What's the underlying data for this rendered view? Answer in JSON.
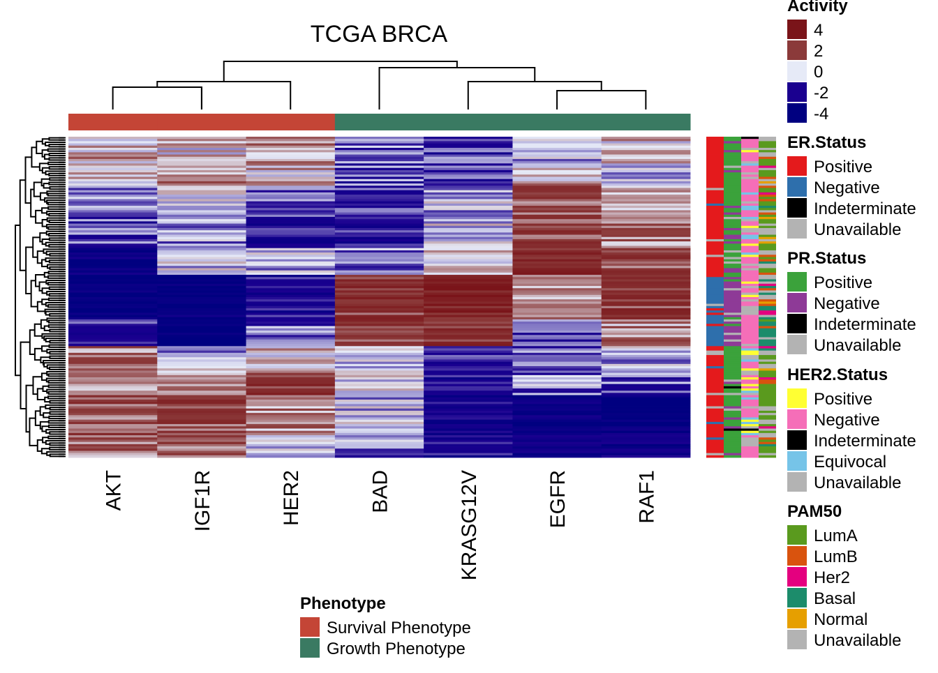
{
  "chart_data": {
    "type": "heatmap",
    "title": "TCGA BRCA",
    "columns": [
      "AKT",
      "IGF1R",
      "HER2",
      "BAD",
      "KRASG12V",
      "EGFR",
      "RAF1"
    ],
    "column_phenotype": [
      "Survival Phenotype",
      "Survival Phenotype",
      "Survival Phenotype",
      "Growth Phenotype",
      "Growth Phenotype",
      "Growth Phenotype",
      "Growth Phenotype"
    ],
    "row_clusters": [
      {
        "rows": 12,
        "values": [
          0.6,
          0.3,
          0.9,
          -1.2,
          -1.6,
          -0.3,
          0.4
        ]
      },
      {
        "rows": 10,
        "values": [
          0.4,
          0.8,
          0.5,
          -1.4,
          -1.8,
          0.7,
          -0.6
        ]
      },
      {
        "rows": 14,
        "values": [
          -0.5,
          -0.3,
          -1.2,
          -1.5,
          -0.4,
          1.8,
          0.6
        ]
      },
      {
        "rows": 14,
        "values": [
          -1.4,
          -0.8,
          -2.2,
          -2.0,
          -0.2,
          2.0,
          1.2
        ]
      },
      {
        "rows": 12,
        "values": [
          -3.5,
          -0.2,
          -0.6,
          -1.0,
          0.6,
          2.6,
          2.0
        ]
      },
      {
        "rows": 20,
        "values": [
          -3.6,
          -3.8,
          -2.4,
          2.4,
          3.2,
          1.0,
          2.4
        ]
      },
      {
        "rows": 12,
        "values": [
          -1.6,
          -4.0,
          -1.0,
          2.2,
          2.8,
          -1.2,
          1.0
        ]
      },
      {
        "rows": 12,
        "values": [
          1.2,
          -0.4,
          0.6,
          -0.6,
          -2.2,
          -1.4,
          -0.6
        ]
      },
      {
        "rows": 10,
        "values": [
          1.4,
          1.2,
          2.6,
          -0.3,
          -2.4,
          -1.0,
          -1.2
        ]
      },
      {
        "rows": 18,
        "values": [
          1.8,
          2.0,
          1.0,
          -0.5,
          -2.6,
          -3.4,
          -3.6
        ]
      },
      {
        "rows": 10,
        "values": [
          1.4,
          1.6,
          -0.2,
          -0.8,
          -2.4,
          -2.6,
          -3.0
        ]
      }
    ],
    "color_scale": {
      "breaks": [
        -4,
        -2,
        0,
        2,
        4
      ],
      "colors": [
        "#000080",
        "#1A008F",
        "#E6EAF7",
        "#8B3A3A",
        "#7A1419"
      ]
    },
    "row_annotation_tracks": [
      "ER.Status",
      "PR.Status",
      "HER2.Status",
      "PAM50"
    ]
  },
  "legends": {
    "activity": {
      "title": "Activity",
      "items": [
        {
          "label": "4",
          "color": "#7A1419"
        },
        {
          "label": "2",
          "color": "#8B3A3A"
        },
        {
          "label": "0",
          "color": "#E6EAF7"
        },
        {
          "label": "-2",
          "color": "#1A008F"
        },
        {
          "label": "-4",
          "color": "#000080"
        }
      ]
    },
    "er_status": {
      "title": "ER.Status",
      "items": [
        {
          "label": "Positive",
          "color": "#E41A1C"
        },
        {
          "label": "Negative",
          "color": "#2E6FAC"
        },
        {
          "label": "Indeterminate",
          "color": "#000000"
        },
        {
          "label": "Unavailable",
          "color": "#B3B3B3"
        }
      ]
    },
    "pr_status": {
      "title": "PR.Status",
      "items": [
        {
          "label": "Positive",
          "color": "#3BA23B"
        },
        {
          "label": "Negative",
          "color": "#8E3A97"
        },
        {
          "label": "Indeterminate",
          "color": "#000000"
        },
        {
          "label": "Unavailable",
          "color": "#B3B3B3"
        }
      ]
    },
    "her2_status": {
      "title": "HER2.Status",
      "items": [
        {
          "label": "Positive",
          "color": "#FFFF33"
        },
        {
          "label": "Negative",
          "color": "#F56EB8"
        },
        {
          "label": "Indeterminate",
          "color": "#000000"
        },
        {
          "label": "Equivocal",
          "color": "#76C4E8"
        },
        {
          "label": "Unavailable",
          "color": "#B3B3B3"
        }
      ]
    },
    "pam50": {
      "title": "PAM50",
      "items": [
        {
          "label": "LumA",
          "color": "#5A9A1E"
        },
        {
          "label": "LumB",
          "color": "#D9530E"
        },
        {
          "label": "Her2",
          "color": "#E4007F"
        },
        {
          "label": "Basal",
          "color": "#1C8C6B"
        },
        {
          "label": "Normal",
          "color": "#E69F00"
        },
        {
          "label": "Unavailable",
          "color": "#B3B3B3"
        }
      ]
    },
    "phenotype": {
      "title": "Phenotype",
      "items": [
        {
          "label": "Survival Phenotype",
          "color": "#C44536"
        },
        {
          "label": "Growth Phenotype",
          "color": "#3A7A62"
        }
      ]
    }
  }
}
